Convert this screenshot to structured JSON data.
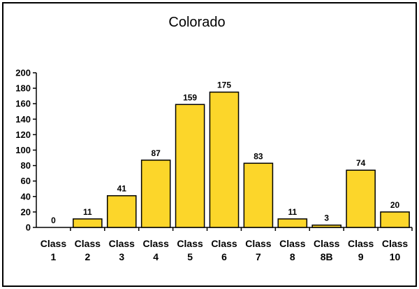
{
  "chart_data": {
    "type": "bar",
    "title": "Colorado",
    "categories": [
      [
        "Class",
        "1"
      ],
      [
        "Class",
        "2"
      ],
      [
        "Class",
        "3"
      ],
      [
        "Class",
        "4"
      ],
      [
        "Class",
        "5"
      ],
      [
        "Class",
        "6"
      ],
      [
        "Class",
        "7"
      ],
      [
        "Class",
        "8"
      ],
      [
        "Class",
        "8B"
      ],
      [
        "Class",
        "9"
      ],
      [
        "Class",
        "10"
      ]
    ],
    "values": [
      0,
      11,
      41,
      87,
      159,
      175,
      83,
      11,
      3,
      74,
      20
    ],
    "data_labels": [
      "0",
      "11",
      "41",
      "87",
      "159",
      "175",
      "83",
      "11",
      "3",
      "74",
      "20"
    ],
    "ylim": [
      0,
      200
    ],
    "yticks": [
      0,
      20,
      40,
      60,
      80,
      100,
      120,
      140,
      160,
      180,
      200
    ],
    "ytick_labels": [
      "0",
      "20",
      "40",
      "60",
      "80",
      "100",
      "120",
      "140",
      "160",
      "180",
      "200"
    ],
    "xlabel": "",
    "ylabel": "",
    "grid": false,
    "legend": "none",
    "colors": {
      "bar_fill": "#FCD62A",
      "bar_stroke": "#000000"
    }
  }
}
